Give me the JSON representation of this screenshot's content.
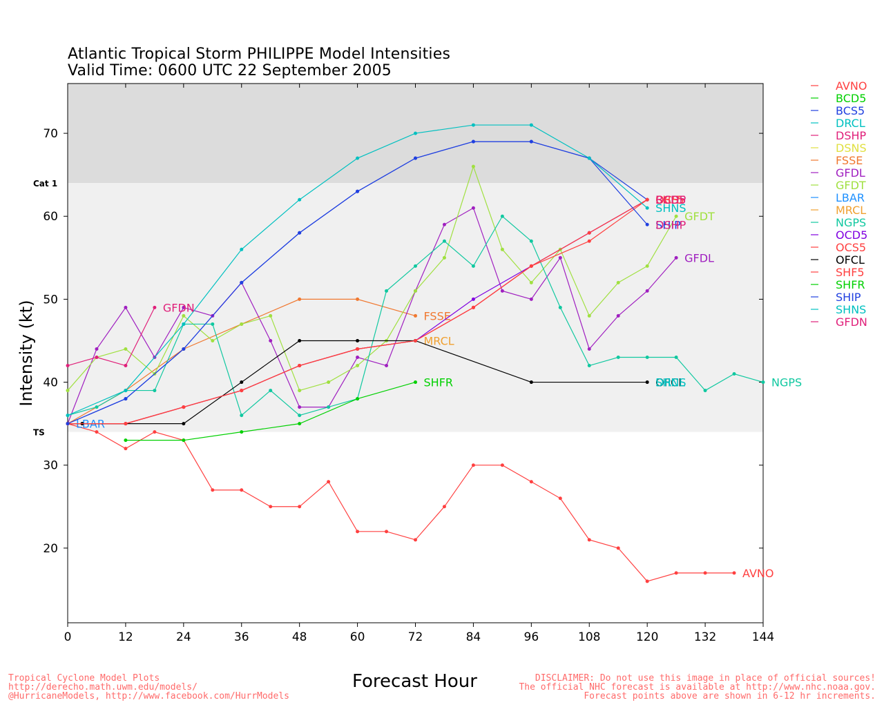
{
  "title_line1": "Atlantic Tropical Storm PHILIPPE Model Intensities",
  "title_line2": "Valid Time: 0600 UTC 22 September 2005",
  "footer": {
    "left1": "Tropical Cyclone Model Plots",
    "left2": "http://derecho.math.uwm.edu/models/",
    "left3": "@HurricaneModels, http://www.facebook.com/HurrModels",
    "right1": "DISCLAIMER: Do not use this image in place of official sources!",
    "right2": "The official NHC forecast is available at http://www.nhc.noaa.gov.",
    "right3": "Forecast points above are shown in 6-12 hr increments."
  },
  "chart_data": {
    "type": "line",
    "xlabel": "Forecast Hour",
    "ylabel": "Intensity (kt)",
    "xlim": [
      0,
      144
    ],
    "ylim": [
      11,
      76
    ],
    "xticks": [
      0,
      12,
      24,
      36,
      48,
      60,
      72,
      84,
      96,
      108,
      120,
      132,
      144
    ],
    "yticks": [
      20,
      30,
      40,
      50,
      60,
      70
    ],
    "bands": [
      {
        "name": "Cat 1",
        "from": 64,
        "to": 76,
        "color": "#dcdcdc"
      },
      {
        "name": "TS",
        "from": 34,
        "to": 64,
        "color": "#f0f0f0"
      }
    ],
    "legend_position": "right",
    "series": [
      {
        "name": "AVNO",
        "color": "#ff4040",
        "x": [
          0,
          6,
          12,
          18,
          24,
          30,
          36,
          42,
          48,
          54,
          60,
          66,
          72,
          78,
          84,
          90,
          96,
          102,
          108,
          114,
          120,
          126,
          132,
          138
        ],
        "y": [
          35,
          34,
          32,
          34,
          33,
          27,
          27,
          25,
          25,
          28,
          22,
          22,
          21,
          25,
          30,
          30,
          28,
          26,
          21,
          20,
          16,
          17,
          17,
          17
        ],
        "label": "AVNO"
      },
      {
        "name": "BCD5",
        "color": "#00d000",
        "x": [],
        "y": []
      },
      {
        "name": "BCS5",
        "color": "#2040e0",
        "x": [
          0,
          12,
          24,
          36,
          48,
          60,
          72,
          84,
          96,
          108,
          120
        ],
        "y": [
          35,
          38,
          44,
          52,
          58,
          63,
          67,
          69,
          69,
          67,
          62
        ]
      },
      {
        "name": "DRCL",
        "color": "#00c0c0",
        "x": [],
        "y": []
      },
      {
        "name": "DSHP",
        "color": "#e0207a",
        "x": [
          0,
          12,
          24,
          36,
          48,
          60,
          72,
          84,
          96,
          108,
          120
        ],
        "y": [
          35,
          35,
          37,
          39,
          42,
          44,
          45,
          49,
          54,
          58,
          62
        ],
        "label": "DSHP"
      },
      {
        "name": "DSNS",
        "color": "#e0e040",
        "x": [],
        "y": []
      },
      {
        "name": "FSSE",
        "color": "#f07830",
        "x": [
          0,
          12,
          24,
          36,
          48,
          60,
          72
        ],
        "y": [
          35,
          39,
          44,
          47,
          50,
          50,
          48
        ],
        "label": "FSSE"
      },
      {
        "name": "GFDL",
        "color": "#a020c0",
        "x": [
          0,
          6,
          12,
          18,
          24,
          30,
          36,
          42,
          48,
          54,
          60,
          66,
          72,
          78,
          84,
          90,
          96,
          102,
          108,
          114,
          120,
          126
        ],
        "y": [
          35,
          44,
          49,
          43,
          49,
          48,
          52,
          45,
          37,
          37,
          43,
          42,
          51,
          59,
          61,
          51,
          50,
          55,
          44,
          48,
          51,
          55
        ],
        "label": "GFDL"
      },
      {
        "name": "GFDT",
        "color": "#a0e040",
        "x": [
          0,
          6,
          12,
          18,
          24,
          30,
          36,
          42,
          48,
          54,
          60,
          66,
          72,
          78,
          84,
          90,
          96,
          102,
          108,
          114,
          120,
          126
        ],
        "y": [
          39,
          43,
          44,
          41,
          48,
          45,
          47,
          48,
          39,
          40,
          42,
          45,
          51,
          55,
          66,
          56,
          52,
          56,
          48,
          52,
          54,
          60
        ],
        "label": "GFDT"
      },
      {
        "name": "LBAR",
        "color": "#1e90ff",
        "x": [
          0
        ],
        "y": [
          35
        ],
        "label": "LBAR"
      },
      {
        "name": "MRCL",
        "color": "#f0a030",
        "x": [
          0,
          12,
          24,
          36,
          48,
          60,
          72
        ],
        "y": [
          35,
          35,
          37,
          39,
          42,
          44,
          45
        ],
        "label": "MRCL"
      },
      {
        "name": "NGPS",
        "color": "#10c8a0",
        "x": [
          0,
          6,
          12,
          18,
          24,
          30,
          36,
          42,
          48,
          54,
          60,
          66,
          72,
          78,
          84,
          90,
          96,
          102,
          108,
          114,
          120,
          126,
          132,
          138,
          144
        ],
        "y": [
          36,
          37,
          39,
          39,
          47,
          47,
          36,
          39,
          36,
          37,
          38,
          51,
          54,
          57,
          54,
          60,
          57,
          49,
          42,
          43,
          43,
          43,
          39,
          41,
          40
        ],
        "label": "NGPS"
      },
      {
        "name": "OCD5",
        "color": "#8000e0",
        "x": [
          0,
          12,
          24,
          36,
          48,
          60,
          72,
          84,
          96,
          108,
          120
        ],
        "y": [
          35,
          35,
          37,
          39,
          42,
          44,
          45,
          50,
          54,
          58,
          62
        ]
      },
      {
        "name": "OCS5",
        "color": "#ff4040",
        "x": [
          0,
          12,
          24,
          36,
          48,
          60,
          72,
          84,
          96,
          108,
          120
        ],
        "y": [
          35,
          35,
          37,
          39,
          42,
          44,
          45,
          49,
          54,
          57,
          62
        ],
        "label": "OCS5"
      },
      {
        "name": "OFCL",
        "color": "#000000",
        "x": [
          0,
          3,
          24,
          36,
          48,
          60,
          72,
          96,
          120
        ],
        "y": [
          35,
          35,
          35,
          40,
          45,
          45,
          45,
          40,
          40
        ],
        "label": "OFCL"
      },
      {
        "name": "SHF5",
        "color": "#ff4040",
        "x": [
          0,
          12,
          24,
          36,
          48,
          60,
          72,
          84,
          96,
          108,
          120
        ],
        "y": [
          35,
          35,
          37,
          39,
          42,
          44,
          45,
          49,
          54,
          58,
          62
        ],
        "label": "SHF5"
      },
      {
        "name": "SHFR",
        "color": "#00d000",
        "x": [
          12,
          24,
          36,
          48,
          60,
          72
        ],
        "y": [
          33,
          33,
          34,
          35,
          38,
          40
        ],
        "label": "SHFR"
      },
      {
        "name": "SHIP",
        "color": "#2040e0",
        "x": [
          0,
          12,
          24,
          36,
          48,
          60,
          72,
          84,
          96,
          108,
          120
        ],
        "y": [
          35,
          38,
          44,
          52,
          58,
          63,
          67,
          69,
          69,
          67,
          59
        ],
        "label": "SHIP"
      },
      {
        "name": "SHNS",
        "color": "#00c0c0",
        "x": [
          0,
          12,
          24,
          36,
          48,
          60,
          72,
          84,
          96,
          108,
          120
        ],
        "y": [
          36,
          39,
          47,
          56,
          62,
          67,
          70,
          71,
          71,
          67,
          61
        ],
        "label": "SHNS"
      },
      {
        "name": "GFDN",
        "color": "#e0207a",
        "x": [
          0,
          6,
          12,
          18
        ],
        "y": [
          42,
          43,
          42,
          49
        ],
        "label": "GFDN"
      }
    ],
    "series_labels_extra": [
      {
        "text": "DSHP",
        "x": 120,
        "y": 59,
        "color": "#e0207a"
      },
      {
        "text": "BCD5",
        "x": 120,
        "y": 62,
        "color": "#e0207a"
      },
      {
        "text": "DRCL",
        "x": 120,
        "y": 40,
        "color": "#00c0c0"
      },
      {
        "text": "SHNS",
        "x": 120,
        "y": 40,
        "color": "#00c0c0"
      }
    ]
  }
}
